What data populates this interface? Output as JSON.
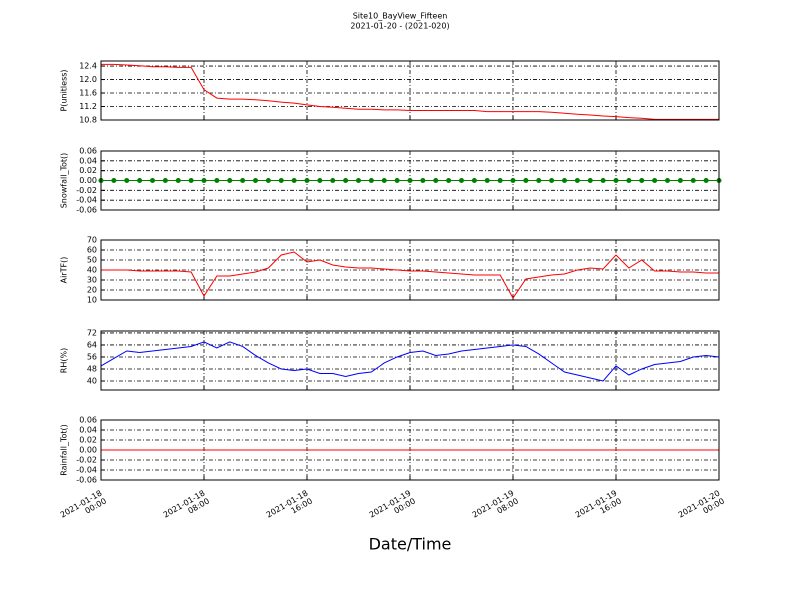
{
  "title": "Site10_BayView_Fifteen",
  "subtitle": "2021-01-20 - (2021-020)",
  "xlabel": "Date/Time",
  "chart_data": [
    {
      "type": "line",
      "ylabel": "P(unitless)",
      "grid": true,
      "ylim": [
        10.8,
        12.55
      ],
      "yticks": [
        10.8,
        11.2,
        11.6,
        {
          "value": 12,
          "label": "12.0"
        },
        12.4
      ],
      "xlim": [
        "2021-01-18 00:00",
        "2021-01-20 00:00"
      ],
      "xticks": [
        "2021-01-18 00:00",
        "2021-01-18 08:00",
        "2021-01-18 16:00",
        "2021-01-19 00:00",
        "2021-01-19 08:00",
        "2021-01-19 16:00",
        "2021-01-20 00:00"
      ],
      "x": [
        "2021-01-18 00:00",
        "2021-01-18 01:00",
        "2021-01-18 02:00",
        "2021-01-18 03:00",
        "2021-01-18 04:00",
        "2021-01-18 05:00",
        "2021-01-18 06:00",
        "2021-01-18 07:00",
        "2021-01-18 08:00",
        "2021-01-18 09:00",
        "2021-01-18 10:00",
        "2021-01-18 11:00",
        "2021-01-18 12:00",
        "2021-01-18 13:00",
        "2021-01-18 14:00",
        "2021-01-18 15:00",
        "2021-01-18 16:00",
        "2021-01-18 17:00",
        "2021-01-18 18:00",
        "2021-01-18 19:00",
        "2021-01-18 20:00",
        "2021-01-18 21:00",
        "2021-01-18 22:00",
        "2021-01-18 23:00",
        "2021-01-19 00:00",
        "2021-01-19 01:00",
        "2021-01-19 02:00",
        "2021-01-19 03:00",
        "2021-01-19 04:00",
        "2021-01-19 05:00",
        "2021-01-19 06:00",
        "2021-01-19 07:00",
        "2021-01-19 08:00",
        "2021-01-19 09:00",
        "2021-01-19 10:00",
        "2021-01-19 11:00",
        "2021-01-19 12:00",
        "2021-01-19 13:00",
        "2021-01-19 14:00",
        "2021-01-19 15:00",
        "2021-01-19 16:00",
        "2021-01-19 17:00",
        "2021-01-19 18:00",
        "2021-01-19 19:00",
        "2021-01-19 20:00",
        "2021-01-19 21:00",
        "2021-01-19 22:00",
        "2021-01-19 23:00",
        "2021-01-20 00:00"
      ],
      "series": [
        {
          "color": "#ff0000",
          "values": [
            12.45,
            12.45,
            12.43,
            12.41,
            12.38,
            12.38,
            12.36,
            12.36,
            11.7,
            11.45,
            11.42,
            11.42,
            11.4,
            11.37,
            11.33,
            11.3,
            11.25,
            11.2,
            11.18,
            11.15,
            11.12,
            11.12,
            11.1,
            11.1,
            11.08,
            11.08,
            11.08,
            11.08,
            11.08,
            11.08,
            11.05,
            11.05,
            11.05,
            11.05,
            11.05,
            11.03,
            11.0,
            10.97,
            10.95,
            10.92,
            10.9,
            10.87,
            10.85,
            10.82,
            10.82,
            10.82,
            10.82,
            10.82,
            10.82
          ]
        }
      ]
    },
    {
      "type": "line",
      "ylabel": "Snowfall_Tot()",
      "grid": true,
      "marker": true,
      "ylim": [
        -0.06,
        0.06
      ],
      "yticks": [
        -0.06,
        -0.04,
        -0.02,
        {
          "value": 0,
          "label": "0.00"
        },
        0.02,
        0.04,
        0.06
      ],
      "xlim": [
        "2021-01-18 00:00",
        "2021-01-20 00:00"
      ],
      "xticks": [
        "2021-01-18 00:00",
        "2021-01-18 08:00",
        "2021-01-18 16:00",
        "2021-01-19 00:00",
        "2021-01-19 08:00",
        "2021-01-19 16:00",
        "2021-01-20 00:00"
      ],
      "x": [
        "2021-01-18 00:00",
        "2021-01-18 01:00",
        "2021-01-18 02:00",
        "2021-01-18 03:00",
        "2021-01-18 04:00",
        "2021-01-18 05:00",
        "2021-01-18 06:00",
        "2021-01-18 07:00",
        "2021-01-18 08:00",
        "2021-01-18 09:00",
        "2021-01-18 10:00",
        "2021-01-18 11:00",
        "2021-01-18 12:00",
        "2021-01-18 13:00",
        "2021-01-18 14:00",
        "2021-01-18 15:00",
        "2021-01-18 16:00",
        "2021-01-18 17:00",
        "2021-01-18 18:00",
        "2021-01-18 19:00",
        "2021-01-18 20:00",
        "2021-01-18 21:00",
        "2021-01-18 22:00",
        "2021-01-18 23:00",
        "2021-01-19 00:00",
        "2021-01-19 01:00",
        "2021-01-19 02:00",
        "2021-01-19 03:00",
        "2021-01-19 04:00",
        "2021-01-19 05:00",
        "2021-01-19 06:00",
        "2021-01-19 07:00",
        "2021-01-19 08:00",
        "2021-01-19 09:00",
        "2021-01-19 10:00",
        "2021-01-19 11:00",
        "2021-01-19 12:00",
        "2021-01-19 13:00",
        "2021-01-19 14:00",
        "2021-01-19 15:00",
        "2021-01-19 16:00",
        "2021-01-19 17:00",
        "2021-01-19 18:00",
        "2021-01-19 19:00",
        "2021-01-19 20:00",
        "2021-01-19 21:00",
        "2021-01-19 22:00",
        "2021-01-19 23:00",
        "2021-01-20 00:00"
      ],
      "series": [
        {
          "color": "#008000",
          "values": [
            0,
            0,
            0,
            0,
            0,
            0,
            0,
            0,
            0,
            0,
            0,
            0,
            0,
            0,
            0,
            0,
            0,
            0,
            0,
            0,
            0,
            0,
            0,
            0,
            0,
            0,
            0,
            0,
            0,
            0,
            0,
            0,
            0,
            0,
            0,
            0,
            0,
            0,
            0,
            0,
            0,
            0,
            0,
            0,
            0,
            0,
            0,
            0,
            0
          ]
        }
      ]
    },
    {
      "type": "line",
      "ylabel": "AirTF()",
      "grid": true,
      "ylim": [
        10,
        70
      ],
      "yticks": [
        10,
        20,
        30,
        40,
        50,
        60,
        70
      ],
      "xlim": [
        "2021-01-18 00:00",
        "2021-01-20 00:00"
      ],
      "xticks": [
        "2021-01-18 00:00",
        "2021-01-18 08:00",
        "2021-01-18 16:00",
        "2021-01-19 00:00",
        "2021-01-19 08:00",
        "2021-01-19 16:00",
        "2021-01-20 00:00"
      ],
      "x": [
        "2021-01-18 00:00",
        "2021-01-18 01:00",
        "2021-01-18 02:00",
        "2021-01-18 03:00",
        "2021-01-18 04:00",
        "2021-01-18 05:00",
        "2021-01-18 06:00",
        "2021-01-18 07:00",
        "2021-01-18 08:00",
        "2021-01-18 09:00",
        "2021-01-18 10:00",
        "2021-01-18 11:00",
        "2021-01-18 12:00",
        "2021-01-18 13:00",
        "2021-01-18 14:00",
        "2021-01-18 15:00",
        "2021-01-18 16:00",
        "2021-01-18 17:00",
        "2021-01-18 18:00",
        "2021-01-18 19:00",
        "2021-01-18 20:00",
        "2021-01-18 21:00",
        "2021-01-18 22:00",
        "2021-01-18 23:00",
        "2021-01-19 00:00",
        "2021-01-19 01:00",
        "2021-01-19 02:00",
        "2021-01-19 03:00",
        "2021-01-19 04:00",
        "2021-01-19 05:00",
        "2021-01-19 06:00",
        "2021-01-19 07:00",
        "2021-01-19 08:00",
        "2021-01-19 09:00",
        "2021-01-19 10:00",
        "2021-01-19 11:00",
        "2021-01-19 12:00",
        "2021-01-19 13:00",
        "2021-01-19 14:00",
        "2021-01-19 15:00",
        "2021-01-19 16:00",
        "2021-01-19 17:00",
        "2021-01-19 18:00",
        "2021-01-19 19:00",
        "2021-01-19 20:00",
        "2021-01-19 21:00",
        "2021-01-19 22:00",
        "2021-01-19 23:00",
        "2021-01-20 00:00"
      ],
      "series": [
        {
          "color": "#ff0000",
          "values": [
            40,
            40,
            40,
            39,
            39,
            39,
            39,
            38,
            14,
            34,
            34,
            36,
            38,
            42,
            55,
            58,
            48,
            50,
            45,
            43,
            42,
            42,
            41,
            40,
            39,
            39,
            38,
            37,
            36,
            35,
            35,
            35,
            12,
            31,
            33,
            35,
            36,
            40,
            42,
            41,
            55,
            42,
            50,
            39,
            39,
            38,
            38,
            37,
            37
          ]
        }
      ]
    },
    {
      "type": "line",
      "ylabel": "RH(%)",
      "grid": true,
      "ylim": [
        34,
        73.3
      ],
      "yticks": [
        40,
        48,
        56,
        64,
        72
      ],
      "xlim": [
        "2021-01-18 00:00",
        "2021-01-20 00:00"
      ],
      "xticks": [
        "2021-01-18 00:00",
        "2021-01-18 08:00",
        "2021-01-18 16:00",
        "2021-01-19 00:00",
        "2021-01-19 08:00",
        "2021-01-19 16:00",
        "2021-01-20 00:00"
      ],
      "x": [
        "2021-01-18 00:00",
        "2021-01-18 01:00",
        "2021-01-18 02:00",
        "2021-01-18 03:00",
        "2021-01-18 04:00",
        "2021-01-18 05:00",
        "2021-01-18 06:00",
        "2021-01-18 07:00",
        "2021-01-18 08:00",
        "2021-01-18 09:00",
        "2021-01-18 10:00",
        "2021-01-18 11:00",
        "2021-01-18 12:00",
        "2021-01-18 13:00",
        "2021-01-18 14:00",
        "2021-01-18 15:00",
        "2021-01-18 16:00",
        "2021-01-18 17:00",
        "2021-01-18 18:00",
        "2021-01-18 19:00",
        "2021-01-18 20:00",
        "2021-01-18 21:00",
        "2021-01-18 22:00",
        "2021-01-18 23:00",
        "2021-01-19 00:00",
        "2021-01-19 01:00",
        "2021-01-19 02:00",
        "2021-01-19 03:00",
        "2021-01-19 04:00",
        "2021-01-19 05:00",
        "2021-01-19 06:00",
        "2021-01-19 07:00",
        "2021-01-19 08:00",
        "2021-01-19 09:00",
        "2021-01-19 10:00",
        "2021-01-19 11:00",
        "2021-01-19 12:00",
        "2021-01-19 13:00",
        "2021-01-19 14:00",
        "2021-01-19 15:00",
        "2021-01-19 16:00",
        "2021-01-19 17:00",
        "2021-01-19 18:00",
        "2021-01-19 19:00",
        "2021-01-19 20:00",
        "2021-01-19 21:00",
        "2021-01-19 22:00",
        "2021-01-19 23:00",
        "2021-01-20 00:00"
      ],
      "series": [
        {
          "color": "#0000ff",
          "values": [
            50,
            55,
            60,
            59,
            60,
            61,
            62,
            63,
            66,
            62,
            66,
            63,
            57,
            52,
            48,
            47,
            48,
            45,
            45,
            43,
            45,
            46,
            52,
            56,
            59,
            60,
            57,
            58,
            60,
            61,
            62,
            63,
            64,
            63,
            58,
            52,
            46,
            44,
            42,
            40,
            50,
            44,
            48,
            51,
            52,
            53,
            56,
            57,
            56
          ]
        }
      ]
    },
    {
      "type": "line",
      "ylabel": "Rainfall_Tot()",
      "grid": true,
      "ylim": [
        -0.06,
        0.06
      ],
      "yticks": [
        -0.06,
        -0.04,
        -0.02,
        {
          "value": 0,
          "label": "0.00"
        },
        0.02,
        0.04,
        0.06
      ],
      "xlim": [
        "2021-01-18 00:00",
        "2021-01-20 00:00"
      ],
      "xticks": [
        "2021-01-18 00:00",
        "2021-01-18 08:00",
        "2021-01-18 16:00",
        "2021-01-19 00:00",
        "2021-01-19 08:00",
        "2021-01-19 16:00",
        "2021-01-20 00:00"
      ],
      "x": [
        "2021-01-18 00:00",
        "2021-01-18 01:00",
        "2021-01-18 02:00",
        "2021-01-18 03:00",
        "2021-01-18 04:00",
        "2021-01-18 05:00",
        "2021-01-18 06:00",
        "2021-01-18 07:00",
        "2021-01-18 08:00",
        "2021-01-18 09:00",
        "2021-01-18 10:00",
        "2021-01-18 11:00",
        "2021-01-18 12:00",
        "2021-01-18 13:00",
        "2021-01-18 14:00",
        "2021-01-18 15:00",
        "2021-01-18 16:00",
        "2021-01-18 17:00",
        "2021-01-18 18:00",
        "2021-01-18 19:00",
        "2021-01-18 20:00",
        "2021-01-18 21:00",
        "2021-01-18 22:00",
        "2021-01-18 23:00",
        "2021-01-19 00:00",
        "2021-01-19 01:00",
        "2021-01-19 02:00",
        "2021-01-19 03:00",
        "2021-01-19 04:00",
        "2021-01-19 05:00",
        "2021-01-19 06:00",
        "2021-01-19 07:00",
        "2021-01-19 08:00",
        "2021-01-19 09:00",
        "2021-01-19 10:00",
        "2021-01-19 11:00",
        "2021-01-19 12:00",
        "2021-01-19 13:00",
        "2021-01-19 14:00",
        "2021-01-19 15:00",
        "2021-01-19 16:00",
        "2021-01-19 17:00",
        "2021-01-19 18:00",
        "2021-01-19 19:00",
        "2021-01-19 20:00",
        "2021-01-19 21:00",
        "2021-01-19 22:00",
        "2021-01-19 23:00",
        "2021-01-20 00:00"
      ],
      "series": [
        {
          "color": "#ff0000",
          "values": [
            0,
            0,
            0,
            0,
            0,
            0,
            0,
            0,
            0,
            0,
            0,
            0,
            0,
            0,
            0,
            0,
            0,
            0,
            0,
            0,
            0,
            0,
            0,
            0,
            0,
            0,
            0,
            0,
            0,
            0,
            0,
            0,
            0,
            0,
            0,
            0,
            0,
            0,
            0,
            0,
            0,
            0,
            0,
            0,
            0,
            0,
            0,
            0,
            0
          ]
        }
      ]
    }
  ]
}
